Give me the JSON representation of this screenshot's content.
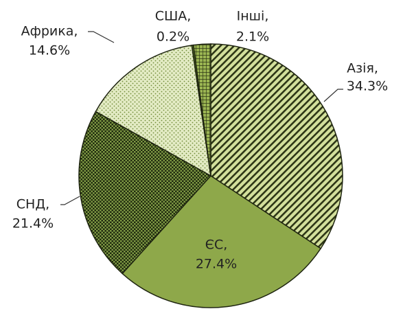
{
  "chart_data": {
    "type": "pie",
    "categories": [
      "Азія,",
      "ЄС,",
      "СНД,",
      "Африка,",
      "США,",
      "Інші,"
    ],
    "values": [
      34.3,
      27.4,
      21.4,
      14.6,
      0.2,
      2.1
    ],
    "value_labels": [
      "34.3%",
      "27.4%",
      "21.4%",
      "14.6%",
      "0.2%",
      "2.1%"
    ],
    "colors": [
      "#c9d98f",
      "#8ea84a",
      "#3b4a1d",
      "#dfe8bd",
      "#5f7a26",
      "#6f8f2e"
    ]
  }
}
